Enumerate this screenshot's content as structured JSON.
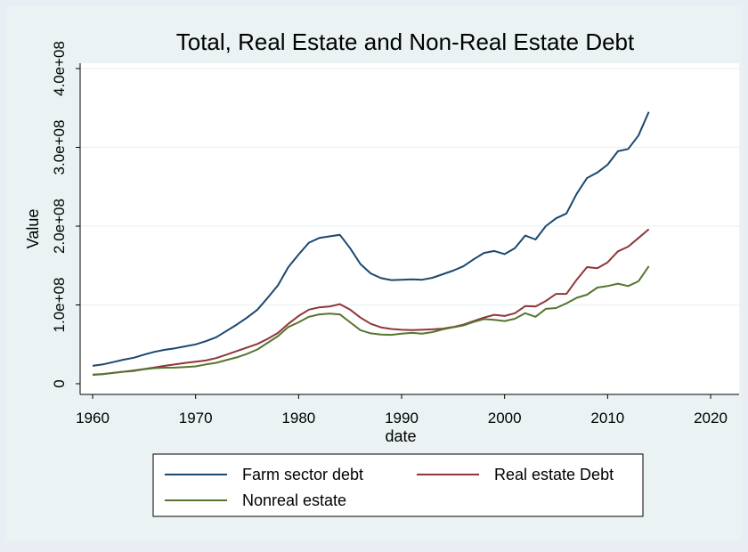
{
  "chart_data": {
    "type": "line",
    "title": "Total, Real Estate and Non-Real Estate Debt",
    "xlabel": "date",
    "ylabel": "Value",
    "xlim": [
      1960,
      2020
    ],
    "ylim": [
      0,
      400000000
    ],
    "x_ticks": [
      1960,
      1970,
      1980,
      1990,
      2000,
      2010,
      2020
    ],
    "x_tick_labels": [
      "1960",
      "1970",
      "1980",
      "1990",
      "2000",
      "2010",
      "2020"
    ],
    "y_ticks": [
      0,
      100000000,
      200000000,
      300000000,
      400000000
    ],
    "y_tick_labels": [
      "0",
      "1.0e+08",
      "2.0e+08",
      "3.0e+08",
      "4.0e+08"
    ],
    "grid": true,
    "legend_position": "bottom",
    "x": [
      1960,
      1961,
      1962,
      1963,
      1964,
      1965,
      1966,
      1967,
      1968,
      1969,
      1970,
      1971,
      1972,
      1973,
      1974,
      1975,
      1976,
      1977,
      1978,
      1979,
      1980,
      1981,
      1982,
      1983,
      1984,
      1985,
      1986,
      1987,
      1988,
      1989,
      1990,
      1991,
      1992,
      1993,
      1994,
      1995,
      1996,
      1997,
      1998,
      1999,
      2000,
      2001,
      2002,
      2003,
      2004,
      2005,
      2006,
      2007,
      2008,
      2009,
      2010,
      2011,
      2012,
      2013,
      2014
    ],
    "series": [
      {
        "name": "Farm sector debt",
        "color": "#1a476f",
        "values": [
          22700000,
          24500000,
          27500000,
          30500000,
          33000000,
          37000000,
          40500000,
          43000000,
          45000000,
          47500000,
          50000000,
          54000000,
          59000000,
          67000000,
          75000000,
          84000000,
          94000000,
          109000000,
          125000000,
          148000000,
          164000000,
          179000000,
          185000000,
          187000000,
          189000000,
          172000000,
          152000000,
          140000000,
          134000000,
          131500000,
          132000000,
          132500000,
          132000000,
          134500000,
          139000000,
          143500000,
          149000000,
          158000000,
          166000000,
          168500000,
          164500000,
          172000000,
          188000000,
          183000000,
          200000000,
          210000000,
          216000000,
          241000000,
          261000000,
          268000000,
          278000000,
          295000000,
          298000000,
          315000000,
          345000000
        ]
      },
      {
        "name": "Real estate Debt",
        "color": "#90353b",
        "values": [
          11500000,
          12300000,
          13700000,
          15200000,
          16800000,
          18700000,
          20700000,
          22700000,
          24600000,
          26400000,
          28000000,
          29500000,
          32500000,
          37000000,
          41500000,
          46000000,
          50500000,
          57000000,
          64500000,
          76000000,
          86000000,
          94000000,
          97000000,
          98000000,
          101000000,
          94000000,
          84000000,
          76000000,
          71500000,
          69500000,
          68500000,
          68000000,
          68500000,
          69000000,
          70000000,
          72000000,
          75000000,
          79500000,
          84000000,
          87500000,
          86000000,
          89500000,
          98500000,
          98000000,
          105000000,
          114000000,
          114000000,
          132000000,
          148000000,
          146500000,
          154000000,
          168000000,
          174000000,
          185000000,
          196000000
        ]
      },
      {
        "name": "Nonreal estate",
        "color": "#55752f",
        "values": [
          11200000,
          12200000,
          13800000,
          15300000,
          16200000,
          18300000,
          19800000,
          20300000,
          20400000,
          21100000,
          22000000,
          24500000,
          26500000,
          30000000,
          33500000,
          38000000,
          43500000,
          52000000,
          60500000,
          72000000,
          78000000,
          85000000,
          88000000,
          89000000,
          88000000,
          78000000,
          68000000,
          64000000,
          62500000,
          62000000,
          63500000,
          64500000,
          63500000,
          65500000,
          69000000,
          71500000,
          74000000,
          78500000,
          82000000,
          81000000,
          79500000,
          82500000,
          89500000,
          85000000,
          95000000,
          96000000,
          102000000,
          109000000,
          113000000,
          122000000,
          124000000,
          127000000,
          124000000,
          130000000,
          149000000
        ]
      }
    ]
  }
}
